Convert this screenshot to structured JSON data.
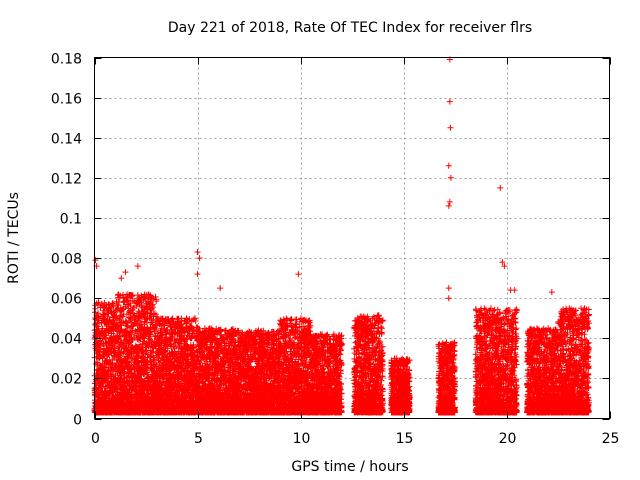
{
  "chart_data": {
    "type": "scatter",
    "title": "Day 221 of 2018, Rate Of TEC Index for receiver flrs",
    "xlabel": "GPS time / hours",
    "ylabel": "ROTI / TECUs",
    "xlim": [
      0,
      25
    ],
    "ylim": [
      0,
      0.18
    ],
    "x_ticks": [
      "0",
      "5",
      "10",
      "15",
      "20",
      "25"
    ],
    "y_ticks": [
      "0",
      "0.02",
      "0.04",
      "0.06",
      "0.08",
      "0.1",
      "0.12",
      "0.14",
      "0.16",
      "0.18"
    ],
    "grid": true,
    "marker": "+",
    "series_color": "#ff0000",
    "envelope": {
      "description": "approximate upper extent of the dense point cloud per hour bin",
      "segments": [
        [
          0.0,
          1.0,
          0.058
        ],
        [
          1.0,
          3.0,
          0.062
        ],
        [
          3.0,
          5.0,
          0.05
        ],
        [
          5.0,
          7.0,
          0.045
        ],
        [
          7.0,
          9.0,
          0.044
        ],
        [
          9.0,
          10.5,
          0.05
        ],
        [
          10.5,
          12.0,
          0.042
        ],
        [
          12.6,
          14.0,
          0.052
        ],
        [
          14.4,
          15.3,
          0.03
        ],
        [
          16.7,
          17.5,
          0.038
        ],
        [
          18.5,
          20.5,
          0.055
        ],
        [
          21.0,
          22.5,
          0.045
        ],
        [
          22.5,
          24.0,
          0.055
        ]
      ]
    },
    "highlights": [
      [
        0.05,
        0.079
      ],
      [
        0.1,
        0.076
      ],
      [
        1.3,
        0.07
      ],
      [
        1.5,
        0.073
      ],
      [
        2.1,
        0.076
      ],
      [
        5.0,
        0.083
      ],
      [
        5.1,
        0.08
      ],
      [
        5.0,
        0.072
      ],
      [
        6.1,
        0.065
      ],
      [
        9.9,
        0.072
      ],
      [
        17.25,
        0.179
      ],
      [
        17.25,
        0.158
      ],
      [
        17.28,
        0.145
      ],
      [
        17.2,
        0.126
      ],
      [
        17.3,
        0.12
      ],
      [
        17.25,
        0.108
      ],
      [
        17.2,
        0.106
      ],
      [
        17.2,
        0.065
      ],
      [
        17.2,
        0.06
      ],
      [
        19.7,
        0.115
      ],
      [
        19.8,
        0.078
      ],
      [
        19.9,
        0.076
      ],
      [
        20.2,
        0.064
      ],
      [
        20.4,
        0.064
      ],
      [
        22.2,
        0.063
      ]
    ]
  }
}
